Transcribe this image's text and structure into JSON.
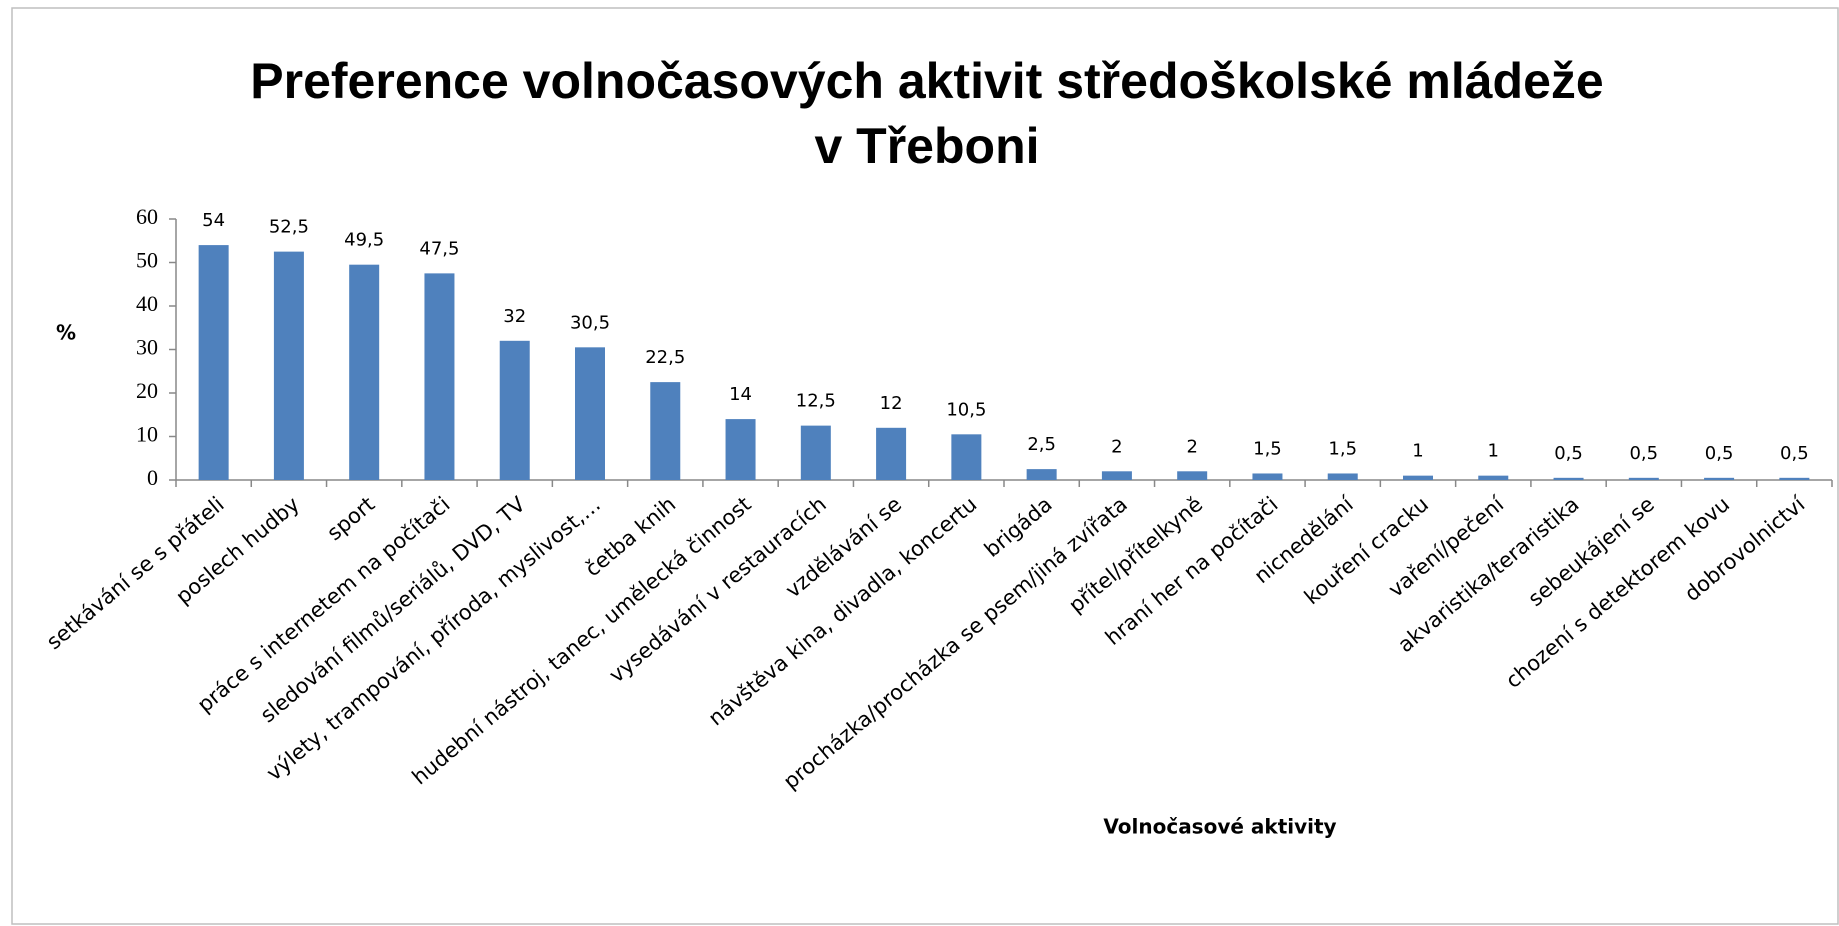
{
  "chart_data": {
    "type": "bar",
    "title": [
      "Preference volnočasových aktivit středoškolské mládeže",
      "v Třeboni"
    ],
    "x_label": "Volnočasové aktivity",
    "y_label": "%",
    "categories": [
      "setkávání se s přáteli",
      "poslech hudby",
      "sport",
      "práce s internetem na počítači",
      "sledování filmů/seriálů, DVD, TV",
      "výlety, trampování, příroda, myslivost,…",
      "četba knih",
      "hudební nástroj, tanec, umělecká činnost",
      "vysedávání v restauracích",
      "vzdělávání se",
      "návštěva kina, divadla, koncertu",
      "brigáda",
      "procházka/procházka se psem/jiná zvířata",
      "přítel/přítelkyně",
      "hraní her na počítači",
      "nicnedělání",
      "kouření cracku",
      "vaření/pečení",
      "akvaristika/teraristika",
      "sebeukájení se",
      "chození s detektorem kovu",
      "dobrovolnictví"
    ],
    "values": [
      54,
      52.5,
      49.5,
      47.5,
      32,
      30.5,
      22.5,
      14,
      12.5,
      12,
      10.5,
      2.5,
      2,
      2,
      1.5,
      1.5,
      1,
      1,
      0.5,
      0.5,
      0.5,
      0.5
    ],
    "value_labels": [
      "54",
      "52,5",
      "49,5",
      "47,5",
      "32",
      "30,5",
      "22,5",
      "14",
      "12,5",
      "12",
      "10,5",
      "2,5",
      "2",
      "2",
      "1,5",
      "1,5",
      "1",
      "1",
      "0,5",
      "0,5",
      "0,5",
      "0,5"
    ],
    "color": "#4f81bd",
    "ylim": [
      0,
      60
    ],
    "yticks": [
      0,
      10,
      20,
      30,
      40,
      50,
      60
    ],
    "grid": false
  }
}
